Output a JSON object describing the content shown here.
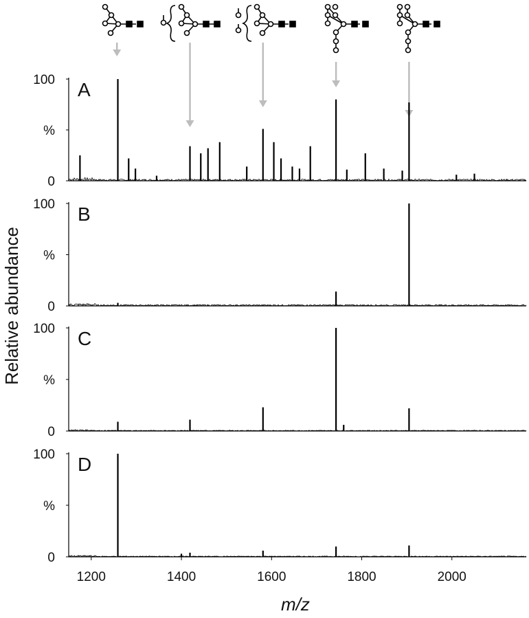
{
  "chart_data": {
    "type": "line",
    "ylabel": "Relative abundance",
    "xlabel": "m/z",
    "xlim": [
      1150,
      2165
    ],
    "x_ticks": [
      "1200",
      "1400",
      "1600",
      "1800",
      "2000"
    ],
    "y_ticks": [
      "0",
      "%",
      "100"
    ],
    "ylim": [
      0,
      100
    ],
    "grid": false,
    "annotated_peaks_mz": [
      1257,
      1419,
      1581,
      1743,
      1905
    ],
    "panels": [
      {
        "label": "A",
        "peaks": [
          [
            1175,
            25
          ],
          [
            1259,
            100
          ],
          [
            1283,
            22
          ],
          [
            1298,
            12
          ],
          [
            1345,
            5
          ],
          [
            1419,
            34
          ],
          [
            1443,
            27
          ],
          [
            1459,
            32
          ],
          [
            1485,
            38
          ],
          [
            1545,
            14
          ],
          [
            1581,
            51
          ],
          [
            1605,
            38
          ],
          [
            1621,
            22
          ],
          [
            1646,
            14
          ],
          [
            1662,
            12
          ],
          [
            1686,
            34
          ],
          [
            1743,
            80
          ],
          [
            1767,
            11
          ],
          [
            1808,
            27
          ],
          [
            1849,
            12
          ],
          [
            1890,
            10
          ],
          [
            1905,
            77
          ],
          [
            2010,
            6
          ],
          [
            2050,
            7
          ]
        ]
      },
      {
        "label": "B",
        "peaks": [
          [
            1259,
            3
          ],
          [
            1743,
            14
          ],
          [
            1905,
            100
          ]
        ]
      },
      {
        "label": "C",
        "peaks": [
          [
            1259,
            9
          ],
          [
            1419,
            11
          ],
          [
            1581,
            23
          ],
          [
            1743,
            100
          ],
          [
            1760,
            6
          ],
          [
            1905,
            22
          ]
        ]
      },
      {
        "label": "D",
        "peaks": [
          [
            1259,
            100
          ],
          [
            1400,
            3
          ],
          [
            1419,
            4
          ],
          [
            1581,
            6
          ],
          [
            1743,
            10
          ],
          [
            1905,
            11
          ]
        ]
      }
    ]
  }
}
